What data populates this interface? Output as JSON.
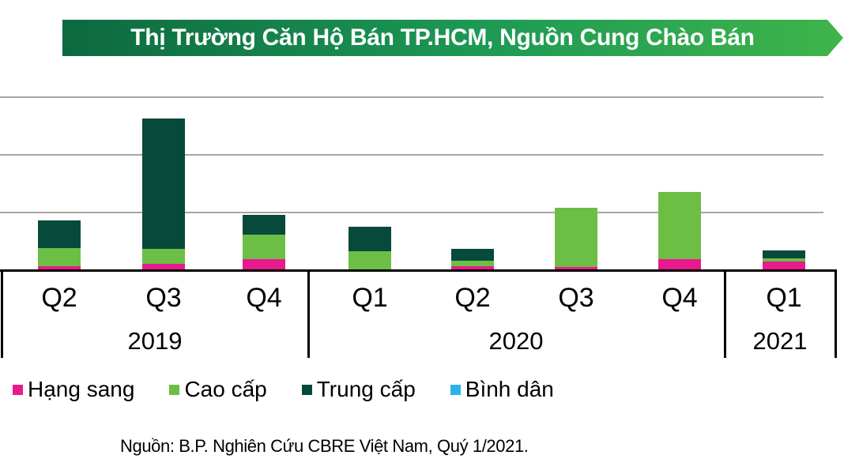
{
  "title": {
    "text": "Thị Trường Căn Hộ Bán TP.HCM, Nguồn Cung Chào Bán"
  },
  "source_note": "Nguồn: B.P. Nghiên Cứu CBRE Việt Nam, Quý 1/2021.",
  "colors": {
    "banner_gradient_start": "#0c6940",
    "banner_gradient_end": "#3fb44a",
    "gridline": "#a6a6a6",
    "axis": "#000000"
  },
  "chart_data": {
    "type": "bar",
    "stacked": true,
    "title": "Thị Trường Căn Hộ Bán TP.HCM, Nguồn Cung Chào Bán",
    "categories": [
      "Q2",
      "Q3",
      "Q4",
      "Q1",
      "Q2",
      "Q3",
      "Q4",
      "Q1"
    ],
    "year_groups": [
      {
        "label": "2019",
        "span": 3
      },
      {
        "label": "2020",
        "span": 4
      },
      {
        "label": "2021",
        "span": 1
      }
    ],
    "series": [
      {
        "name": "Hạng sang",
        "color": "#e81a8d",
        "values": [
          0.05,
          0.1,
          0.18,
          0.0,
          0.05,
          0.04,
          0.18,
          0.14
        ]
      },
      {
        "name": "Cao cấp",
        "color": "#6cbe45",
        "values": [
          0.32,
          0.25,
          0.42,
          0.32,
          0.1,
          1.03,
          1.16,
          0.05
        ]
      },
      {
        "name": "Trung cấp",
        "color": "#07493a",
        "values": [
          0.48,
          2.26,
          0.34,
          0.42,
          0.2,
          0.0,
          0.0,
          0.14
        ]
      },
      {
        "name": "Bình dân",
        "color": "#29b4e8",
        "values": [
          0.0,
          0.0,
          0.0,
          0.0,
          0.0,
          0.0,
          0.0,
          0.0
        ]
      }
    ],
    "xlabel": "",
    "ylabel": "",
    "y_axis_tick_labels_visible": false,
    "y_unit": "gridline intervals (y-axis labels cropped out of image)",
    "ylim": [
      0,
      3
    ],
    "gridlines_at": [
      1,
      2,
      3
    ],
    "grid": true,
    "legend_position": "bottom"
  }
}
